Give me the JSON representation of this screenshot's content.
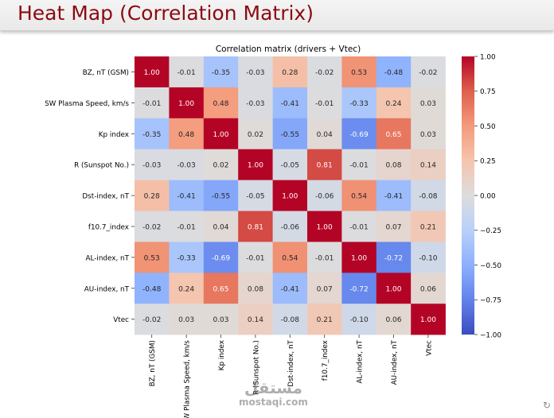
{
  "slide": {
    "title": "Heat Map (Correlation Matrix)"
  },
  "watermark": {
    "arabic": "مستقل",
    "latin": "mostaqi.com"
  },
  "nav_icon": "↻",
  "colors": {
    "title": "#8b0b12",
    "neg": "#3b4cc0",
    "mid": "#dddddd",
    "pos": "#b40426"
  },
  "chart_data": {
    "type": "heatmap",
    "title": "Correlation matrix (drivers + Vtec)",
    "labels": [
      "BZ, nT (GSM)",
      "SW Plasma Speed, km/s",
      "Kp index",
      "R (Sunspot No.)",
      "Dst-index, nT",
      "f10.7_index",
      "AL-index, nT",
      "AU-index, nT",
      "Vtec"
    ],
    "matrix": [
      [
        1.0,
        -0.01,
        -0.35,
        -0.03,
        0.28,
        -0.02,
        0.53,
        -0.48,
        -0.02
      ],
      [
        -0.01,
        1.0,
        0.48,
        -0.03,
        -0.41,
        -0.01,
        -0.33,
        0.24,
        0.03
      ],
      [
        -0.35,
        0.48,
        1.0,
        0.02,
        -0.55,
        0.04,
        -0.69,
        0.65,
        0.03
      ],
      [
        -0.03,
        -0.03,
        0.02,
        1.0,
        -0.05,
        0.81,
        -0.01,
        0.08,
        0.14
      ],
      [
        0.28,
        -0.41,
        -0.55,
        -0.05,
        1.0,
        -0.06,
        0.54,
        -0.41,
        -0.08
      ],
      [
        -0.02,
        -0.01,
        0.04,
        0.81,
        -0.06,
        1.0,
        -0.01,
        0.07,
        0.21
      ],
      [
        0.53,
        -0.33,
        -0.69,
        -0.01,
        0.54,
        -0.01,
        1.0,
        -0.72,
        -0.1
      ],
      [
        -0.48,
        0.24,
        0.65,
        0.08,
        -0.41,
        0.07,
        -0.72,
        1.0,
        0.06
      ],
      [
        -0.02,
        0.03,
        0.03,
        0.14,
        -0.08,
        0.21,
        -0.1,
        0.06,
        1.0
      ]
    ],
    "value_format": "0.00",
    "colorbar": {
      "range": [
        -1.0,
        1.0
      ],
      "ticks": [
        "1.00",
        "0.75",
        "0.50",
        "0.25",
        "0.00",
        "−0.25",
        "−0.50",
        "−0.75",
        "−1.00"
      ],
      "colormap": "coolwarm"
    }
  }
}
